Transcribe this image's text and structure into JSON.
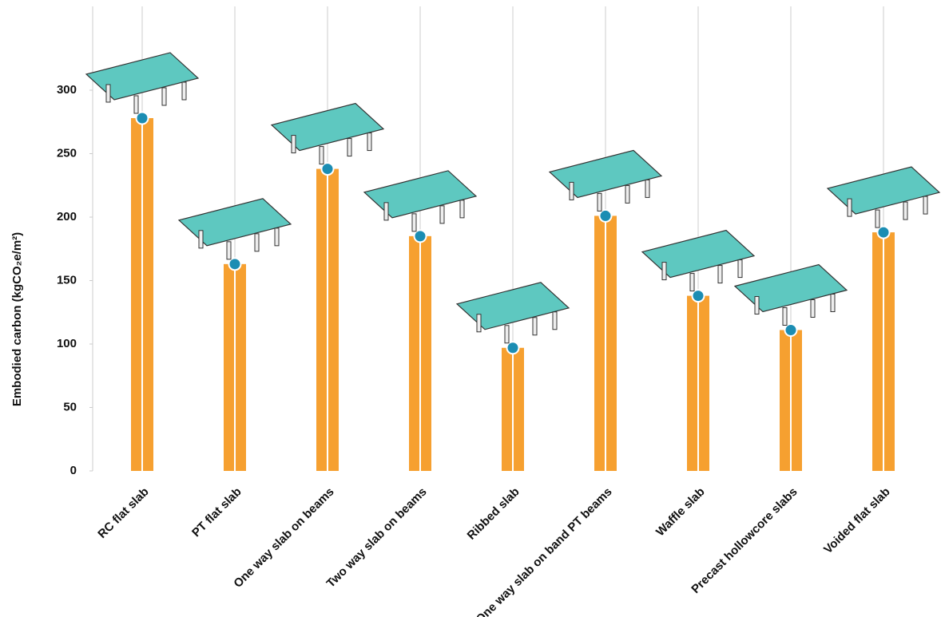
{
  "chart_data": {
    "type": "bar",
    "y_axis_label": "Embodied carbon (kgCO₂e/m²)",
    "categories": [
      "RC flat slab",
      "PT flat slab",
      "One way slab on beams",
      "Two way slab on beams",
      "Ribbed slab",
      "One way slab on band PT beams",
      "Waffle slab",
      "Precast hollowcore slabs",
      "Voided flat slab"
    ],
    "values": [
      278,
      163,
      238,
      185,
      97,
      201,
      138,
      111,
      188
    ],
    "color": "#f6a030",
    "marker_color": "#1b8db3",
    "ylim": [
      0,
      350
    ],
    "yticks": [
      0,
      50,
      100,
      150,
      200,
      250,
      300
    ],
    "grid": true
  }
}
